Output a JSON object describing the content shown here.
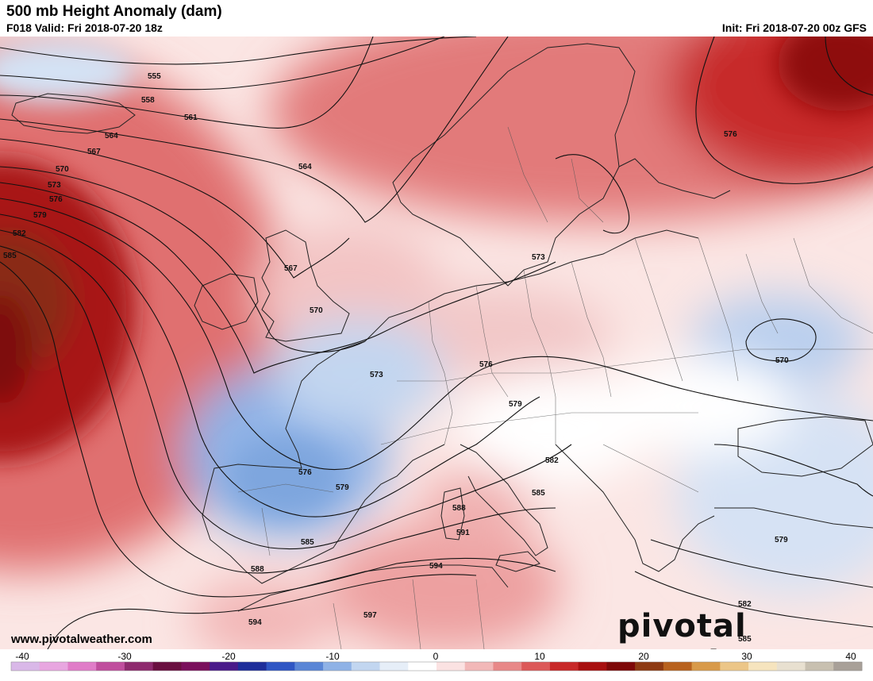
{
  "header": {
    "title": "500 mb Height Anomaly (dam)",
    "valid": "F018 Valid: Fri 2018-07-20 18z",
    "init": "Init: Fri 2018-07-20 00z GFS"
  },
  "footer": {
    "site": "www.pivotalweather.com",
    "brand": "pivotal weather"
  },
  "colorbar": {
    "min": -40,
    "max": 40,
    "labels": [
      "-40",
      "-30",
      "-20",
      "-10",
      "0",
      "10",
      "20",
      "30",
      "40"
    ],
    "colors": [
      "#d9b8e8",
      "#e8a6e0",
      "#e07cc8",
      "#c04e9e",
      "#8e2a6e",
      "#6a0f40",
      "#7a0f5c",
      "#4a1a8a",
      "#1e2e9a",
      "#2f56c4",
      "#5a86d6",
      "#8fb2e6",
      "#c2d6f0",
      "#e6eef8",
      "#ffffff",
      "#fbe2e2",
      "#f2b8b8",
      "#e88888",
      "#dc5858",
      "#c82828",
      "#a80f0f",
      "#7e0808",
      "#8e3a12",
      "#b8621e",
      "#d89a4a",
      "#ecc688",
      "#f6e4be",
      "#e8e0d0",
      "#c8c0b0",
      "#a8a098"
    ]
  },
  "contour_labels": [
    "555",
    "558",
    "561",
    "564",
    "564",
    "567",
    "567",
    "570",
    "570",
    "570",
    "573",
    "573",
    "573",
    "576",
    "576",
    "576",
    "576",
    "579",
    "579",
    "579",
    "579",
    "582",
    "582",
    "582",
    "585",
    "585",
    "585",
    "585",
    "588",
    "588",
    "591",
    "594",
    "594",
    "597"
  ]
}
